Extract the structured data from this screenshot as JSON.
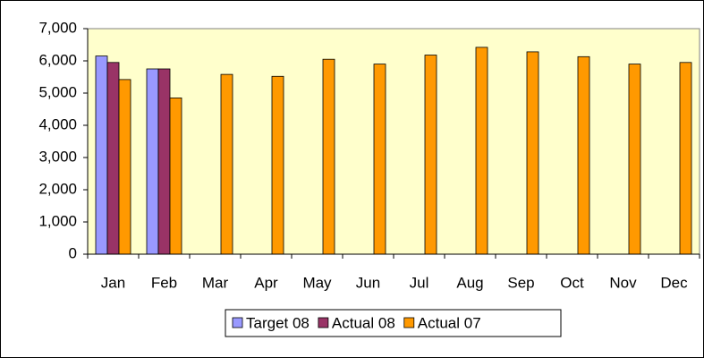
{
  "chart_data": {
    "type": "bar",
    "categories": [
      "Jan",
      "Feb",
      "Mar",
      "Apr",
      "May",
      "Jun",
      "Jul",
      "Aug",
      "Sep",
      "Oct",
      "Nov",
      "Dec"
    ],
    "series": [
      {
        "name": "Target 08",
        "color": "#9999ff",
        "values": [
          6150,
          5750,
          null,
          null,
          null,
          null,
          null,
          null,
          null,
          null,
          null,
          null
        ]
      },
      {
        "name": "Actual 08",
        "color": "#993366",
        "values": [
          5950,
          5750,
          null,
          null,
          null,
          null,
          null,
          null,
          null,
          null,
          null,
          null
        ]
      },
      {
        "name": "Actual 07",
        "color": "#ff9900",
        "values": [
          5420,
          4850,
          5580,
          5520,
          6050,
          5900,
          6180,
          6420,
          6280,
          6130,
          5900,
          5950
        ]
      }
    ],
    "ylim": [
      0,
      7000
    ],
    "yticks": [
      0,
      {
        "value": 1000,
        "label": "1,000"
      },
      {
        "value": 2000,
        "label": "2,000"
      },
      {
        "value": 3000,
        "label": "3,000"
      },
      {
        "value": 4000,
        "label": "4,000"
      },
      {
        "value": 5000,
        "label": "5,000"
      },
      {
        "value": 6000,
        "label": "6,000"
      },
      {
        "value": 7000,
        "label": "7,000"
      }
    ],
    "grid": false,
    "plot_background": "#ffffcc",
    "legend": "bottom"
  }
}
